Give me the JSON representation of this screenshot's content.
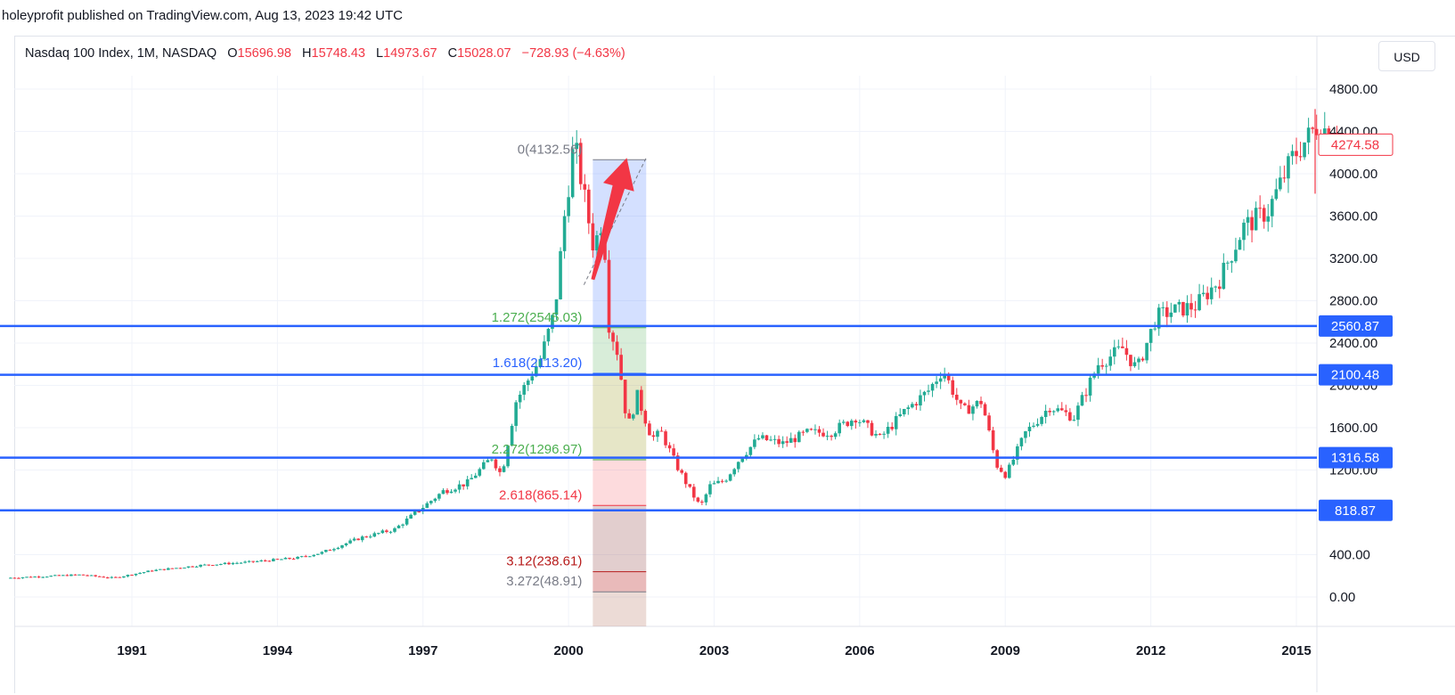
{
  "header": {
    "text": "holeyprofit published on TradingView.com, Aug 13, 2023 19:42 UTC"
  },
  "legend": {
    "symbol": "Nasdaq 100 Index, 1M, NASDAQ",
    "o_label": "O",
    "o_value": "15696.98",
    "h_label": "H",
    "h_value": "15748.43",
    "l_label": "L",
    "l_value": "14973.67",
    "c_label": "C",
    "c_value": "15028.07",
    "change": "−728.93 (−4.63%)"
  },
  "currency_button": "USD",
  "colors": {
    "up": "#22ab94",
    "down": "#f23645",
    "hline": "#2962ff",
    "grid": "#f0f3fa",
    "fib_zone": "#c8d6ff"
  },
  "chart_data": {
    "type": "candlestick",
    "symbol": "Nasdaq 100 Index",
    "interval": "1M",
    "x_range": [
      1988.5,
      2015.9
    ],
    "ylim": [
      -150,
      5000
    ],
    "y_ticks": [
      0,
      400,
      1200,
      1600,
      2000,
      2400,
      2800,
      3200,
      3600,
      4000,
      4400,
      4800
    ],
    "y_tick_labels": [
      "0.00",
      "400.00",
      "1200.00",
      "1600.00",
      "2000.00",
      "2400.00",
      "2800.00",
      "3200.00",
      "3600.00",
      "4000.00",
      "4400.00",
      "4800.00"
    ],
    "x_ticks": [
      "1991",
      "1994",
      "1997",
      "2000",
      "2003",
      "2006",
      "2009",
      "2012",
      "2015"
    ],
    "grid": true,
    "last_price": {
      "value": 4274.58,
      "label": "4274.58"
    },
    "horizontal_lines": [
      {
        "value": 2560.87,
        "label": "2560.87"
      },
      {
        "value": 2100.48,
        "label": "2100.48"
      },
      {
        "value": 1316.58,
        "label": "1316.58"
      },
      {
        "value": 818.87,
        "label": "818.87"
      }
    ],
    "fib_extension": {
      "x_start": 2000.5,
      "x_end": 2001.6,
      "levels": [
        {
          "ratio": "0",
          "value": 4132.56,
          "label": "0(4132.56)",
          "color": "#787b86"
        },
        {
          "ratio": "1.272",
          "value": 2545.03,
          "label": "1.272(2545.03)",
          "color": "#4caf50"
        },
        {
          "ratio": "1.618",
          "value": 2113.2,
          "label": "1.618(2113.20)",
          "color": "#2962ff"
        },
        {
          "ratio": "2.272",
          "value": 1296.97,
          "label": "2.272(1296.97)",
          "color": "#4caf50"
        },
        {
          "ratio": "2.618",
          "value": 865.14,
          "label": "2.618(865.14)",
          "color": "#f23645"
        },
        {
          "ratio": "3.12",
          "value": 238.61,
          "label": "3.12(238.61)",
          "color": "#b71c1c"
        },
        {
          "ratio": "3.272",
          "value": 48.91,
          "label": "3.272(48.91)",
          "color": "#787b86"
        }
      ]
    },
    "annotation_arrow": {
      "from": [
        2000.5,
        3000
      ],
      "to": [
        2001.2,
        4150
      ],
      "color": "#f23645"
    },
    "price_path_knots": [
      [
        1988.5,
        180
      ],
      [
        1990.0,
        210
      ],
      [
        1990.7,
        180
      ],
      [
        1991.5,
        250
      ],
      [
        1992.5,
        300
      ],
      [
        1993.5,
        330
      ],
      [
        1994.5,
        370
      ],
      [
        1995.0,
        420
      ],
      [
        1995.8,
        560
      ],
      [
        1996.5,
        640
      ],
      [
        1997.0,
        820
      ],
      [
        1997.5,
        1000
      ],
      [
        1998.0,
        1080
      ],
      [
        1998.5,
        1320
      ],
      [
        1998.7,
        1150
      ],
      [
        1999.0,
        1850
      ],
      [
        1999.5,
        2250
      ],
      [
        1999.8,
        2700
      ],
      [
        2000.0,
        3600
      ],
      [
        2000.2,
        4300
      ],
      [
        2000.4,
        3800
      ],
      [
        2000.6,
        3300
      ],
      [
        2000.8,
        3600
      ],
      [
        2000.9,
        2600
      ],
      [
        2001.1,
        2300
      ],
      [
        2001.3,
        1600
      ],
      [
        2001.5,
        1900
      ],
      [
        2001.8,
        1500
      ],
      [
        2002.0,
        1550
      ],
      [
        2002.3,
        1250
      ],
      [
        2002.6,
        1000
      ],
      [
        2002.8,
        850
      ],
      [
        2003.0,
        1050
      ],
      [
        2003.3,
        1100
      ],
      [
        2003.6,
        1300
      ],
      [
        2004.0,
        1500
      ],
      [
        2004.5,
        1450
      ],
      [
        2005.0,
        1550
      ],
      [
        2005.5,
        1560
      ],
      [
        2006.0,
        1700
      ],
      [
        2006.5,
        1500
      ],
      [
        2007.0,
        1750
      ],
      [
        2007.5,
        1950
      ],
      [
        2007.8,
        2150
      ],
      [
        2008.2,
        1750
      ],
      [
        2008.6,
        1850
      ],
      [
        2008.9,
        1250
      ],
      [
        2009.1,
        1150
      ],
      [
        2009.5,
        1550
      ],
      [
        2010.0,
        1800
      ],
      [
        2010.5,
        1700
      ],
      [
        2011.0,
        2200
      ],
      [
        2011.5,
        2350
      ],
      [
        2011.8,
        2150
      ],
      [
        2012.2,
        2650
      ],
      [
        2012.5,
        2700
      ],
      [
        2013.0,
        2750
      ],
      [
        2013.5,
        3000
      ],
      [
        2014.0,
        3500
      ],
      [
        2014.5,
        3650
      ],
      [
        2015.0,
        4150
      ],
      [
        2015.5,
        4450
      ],
      [
        2015.8,
        4400
      ]
    ]
  }
}
